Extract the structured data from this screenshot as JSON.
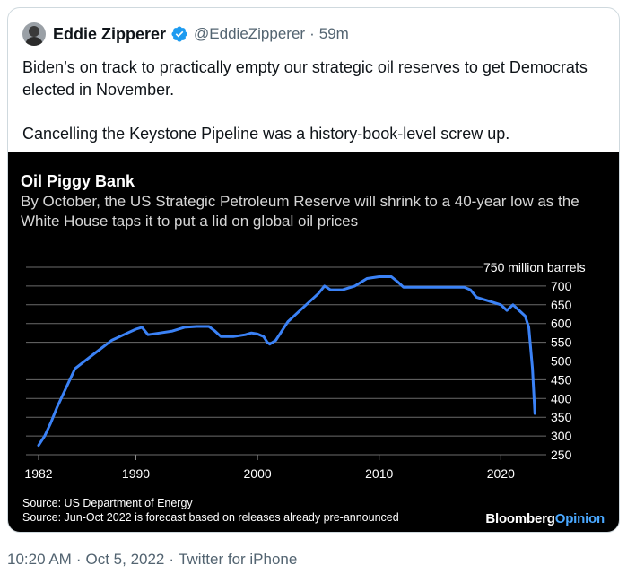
{
  "tweet": {
    "author_name": "Eddie Zipperer",
    "handle": "@EddieZipperer",
    "separator": "·",
    "relative_time": "59m",
    "paragraph1": "Biden’s on track to practically empty our strategic oil reserves to get Democrats elected in November.",
    "paragraph2": "Cancelling the Keystone Pipeline was a history-book-level screw up.",
    "verified_color": "#1d9bf0"
  },
  "footer": {
    "time": "10:20 AM",
    "date": "Oct 5, 2022",
    "source": "Twitter for iPhone",
    "separator": "·"
  },
  "chart_data": {
    "type": "line",
    "title": "Oil Piggy Bank",
    "subtitle": "By October, the US Strategic Petroleum Reserve will shrink to a 40-year low as the White House taps it to put a lid on global oil prices",
    "ylabel_unit": "750 million barrels",
    "y_ticks": [
      750,
      700,
      650,
      600,
      550,
      500,
      450,
      400,
      350,
      300,
      250
    ],
    "y_tick_labels": [
      "700",
      "650",
      "600",
      "550",
      "500",
      "450",
      "400",
      "350",
      "300",
      "250"
    ],
    "x_ticks": [
      1982,
      1990,
      2000,
      2010,
      2020
    ],
    "ylim": [
      250,
      750
    ],
    "xlim": [
      1982,
      2023
    ],
    "axis_side": "right",
    "grid": true,
    "line_color": "#3b82f6",
    "series": [
      {
        "x": [
          1982,
          1982.5,
          1983,
          1983.5,
          1984,
          1984.5,
          1985,
          1986,
          1987,
          1988,
          1989,
          1990,
          1990.5,
          1991,
          1992,
          1993,
          1994,
          1995,
          1996,
          1996.5,
          1997,
          1998,
          1999,
          1999.5,
          2000,
          2000.5,
          2000.8,
          2001,
          2001.5,
          2002,
          2002.5,
          2003,
          2004,
          2005,
          2005.5,
          2006,
          2007,
          2008,
          2008.5,
          2009,
          2010,
          2011,
          2011.5,
          2012,
          2013,
          2014,
          2015,
          2016,
          2017,
          2017.5,
          2018,
          2019,
          2019.5,
          2020,
          2020.5,
          2021,
          2021.5,
          2022,
          2022.3,
          2022.6,
          2022.8
        ],
        "y": [
          275,
          300,
          335,
          375,
          410,
          445,
          480,
          505,
          530,
          555,
          570,
          585,
          590,
          570,
          575,
          580,
          590,
          592,
          592,
          580,
          565,
          565,
          570,
          575,
          572,
          565,
          550,
          545,
          555,
          580,
          605,
          620,
          650,
          680,
          700,
          690,
          690,
          700,
          710,
          720,
          725,
          725,
          712,
          697,
          697,
          697,
          697,
          697,
          697,
          690,
          670,
          660,
          655,
          650,
          635,
          650,
          635,
          620,
          590,
          480,
          360
        ]
      }
    ],
    "sources": [
      "Source: US Department of Energy",
      "Source: Jun-Oct 2022 is forecast based on releases already pre-announced"
    ],
    "brand_part1": "Bloomberg",
    "brand_part2": "Opinion"
  }
}
